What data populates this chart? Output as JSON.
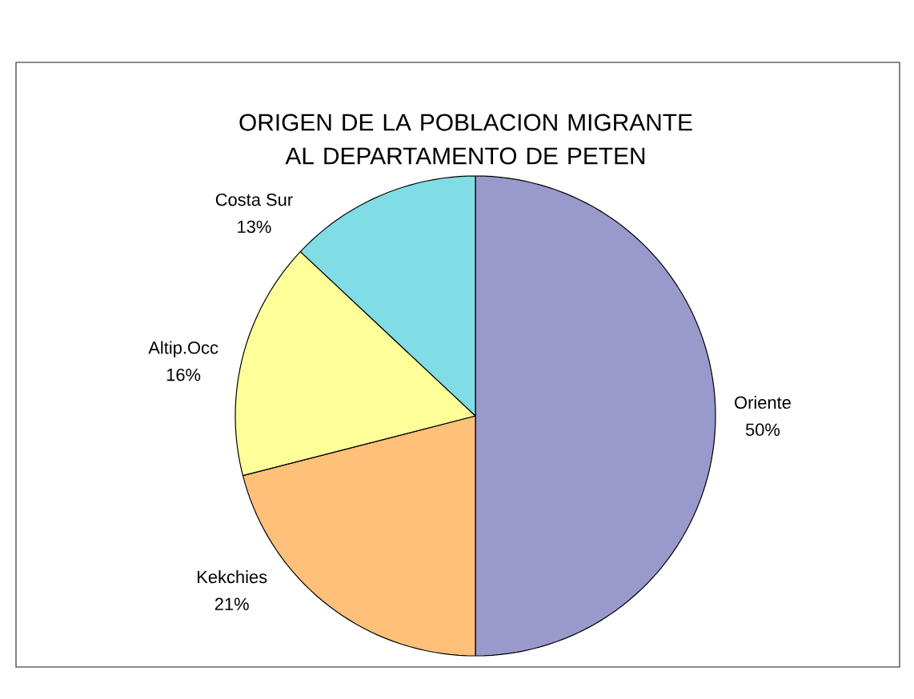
{
  "chart_data": {
    "type": "pie",
    "title": "ORIGEN DE LA POBLACION MIGRANTE AL DEPARTAMENTO DE PETEN",
    "categories": [
      "Oriente",
      "Kekchies",
      "Altip.Occ",
      "Costa Sur"
    ],
    "values": [
      50,
      21,
      16,
      13
    ],
    "colors": [
      "#9999cc",
      "#ffc07a",
      "#ffff99",
      "#80dde6"
    ],
    "value_labels": [
      "50%",
      "21%",
      "16%",
      "13%"
    ]
  }
}
